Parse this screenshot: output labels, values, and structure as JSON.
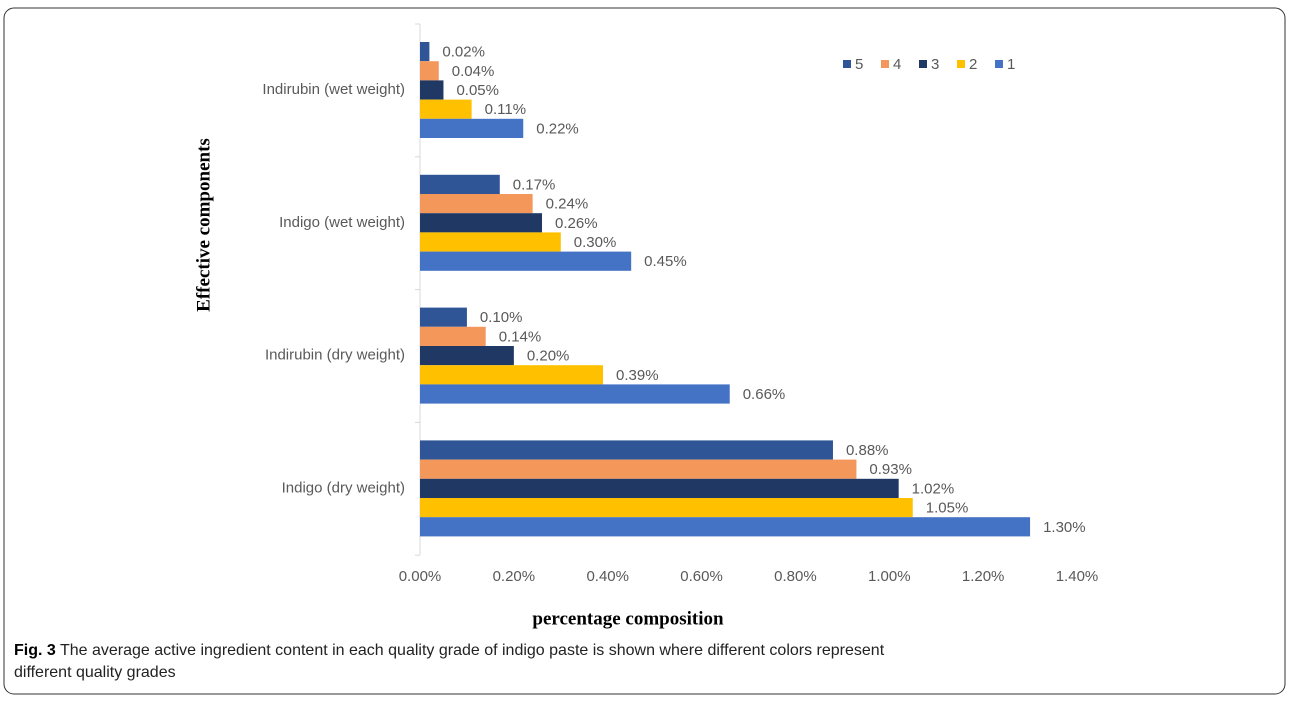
{
  "chart_data": {
    "type": "hbar",
    "xlabel": "percentage composition",
    "ylabel": "Effective components",
    "caption_label": "Fig. 3",
    "caption": "The average active ingredient content in each quality grade of indigo paste is shown where different colors represent different quality grades",
    "categories": [
      "Indirubin (wet weight)",
      "Indigo (wet weight)",
      "Indirubin (dry weight)",
      "Indigo (dry weight)"
    ],
    "series": [
      {
        "name": "5",
        "color": "#2f5597",
        "values": [
          0.02,
          0.17,
          0.1,
          0.88
        ],
        "value_labels": [
          "0.02%",
          "0.17%",
          "0.10%",
          "0.88%"
        ]
      },
      {
        "name": "4",
        "color": "#f4975a",
        "values": [
          0.04,
          0.24,
          0.14,
          0.93
        ],
        "value_labels": [
          "0.04%",
          "0.24%",
          "0.14%",
          "0.93%"
        ]
      },
      {
        "name": "3",
        "color": "#1f3864",
        "values": [
          0.05,
          0.26,
          0.2,
          1.02
        ],
        "value_labels": [
          "0.05%",
          "0.26%",
          "0.20%",
          "1.02%"
        ]
      },
      {
        "name": "2",
        "color": "#ffc000",
        "values": [
          0.11,
          0.3,
          0.39,
          1.05
        ],
        "value_labels": [
          "0.11%",
          "0.30%",
          "0.39%",
          "1.05%"
        ]
      },
      {
        "name": "1",
        "color": "#4472c4",
        "values": [
          0.22,
          0.45,
          0.66,
          1.3
        ],
        "value_labels": [
          "0.22%",
          "0.45%",
          "0.66%",
          "1.30%"
        ]
      }
    ],
    "xlim": [
      0,
      1.4
    ],
    "xticks": [
      {
        "value": 0,
        "label": "0.00%"
      },
      {
        "value": 0.2,
        "label": "0.20%"
      },
      {
        "value": 0.4,
        "label": "0.40%"
      },
      {
        "value": 0.6,
        "label": "0.60%"
      },
      {
        "value": 0.8,
        "label": "0.80%"
      },
      {
        "value": 1.0,
        "label": "1.00%"
      },
      {
        "value": 1.2,
        "label": "1.20%"
      },
      {
        "value": 1.4,
        "label": "1.40%"
      }
    ],
    "grid": false,
    "legend": "top-right"
  }
}
